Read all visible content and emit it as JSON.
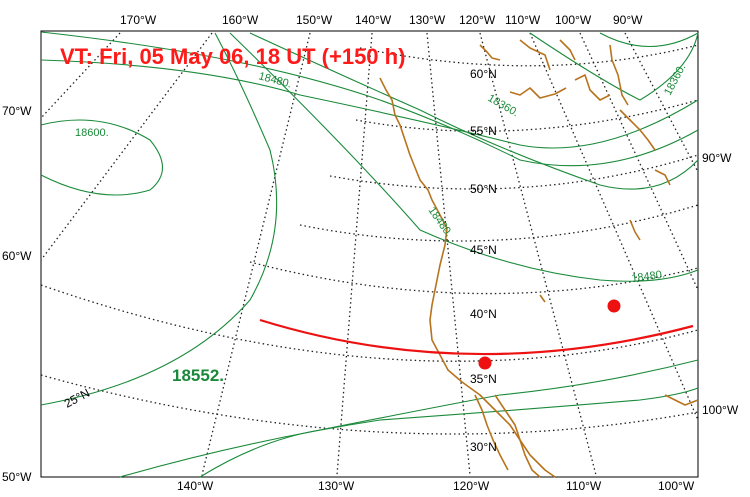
{
  "title": "VT:  Fri, 05 May 06, 18 UT (+150 h)",
  "top_lon_labels": [
    "170°W",
    "160°W",
    "150°W",
    "140°W",
    "130°W",
    "120°W",
    "110°W",
    "100°W",
    "90°W"
  ],
  "bottom_lon_labels": [
    "140°W",
    "130°W",
    "120°W",
    "110°W",
    "100°W"
  ],
  "left_labels": [
    "70°W",
    "60°W",
    "50°W"
  ],
  "right_labels": [
    "90°W",
    "100°W"
  ],
  "lat_labels": [
    "60°N",
    "55°N",
    "50°N",
    "45°N",
    "40°N",
    "35°N",
    "30°N",
    "25°N"
  ],
  "contour_labels": [
    "18480.",
    "18600.",
    "18360.",
    "18360.",
    "18480.",
    "18480."
  ],
  "highlight_value": "18552.",
  "colors": {
    "title": "#ff1a1a",
    "contour": "#1a8a3a",
    "coast": "#b8731d",
    "track": "#ee1111",
    "grid": "#222222"
  }
}
